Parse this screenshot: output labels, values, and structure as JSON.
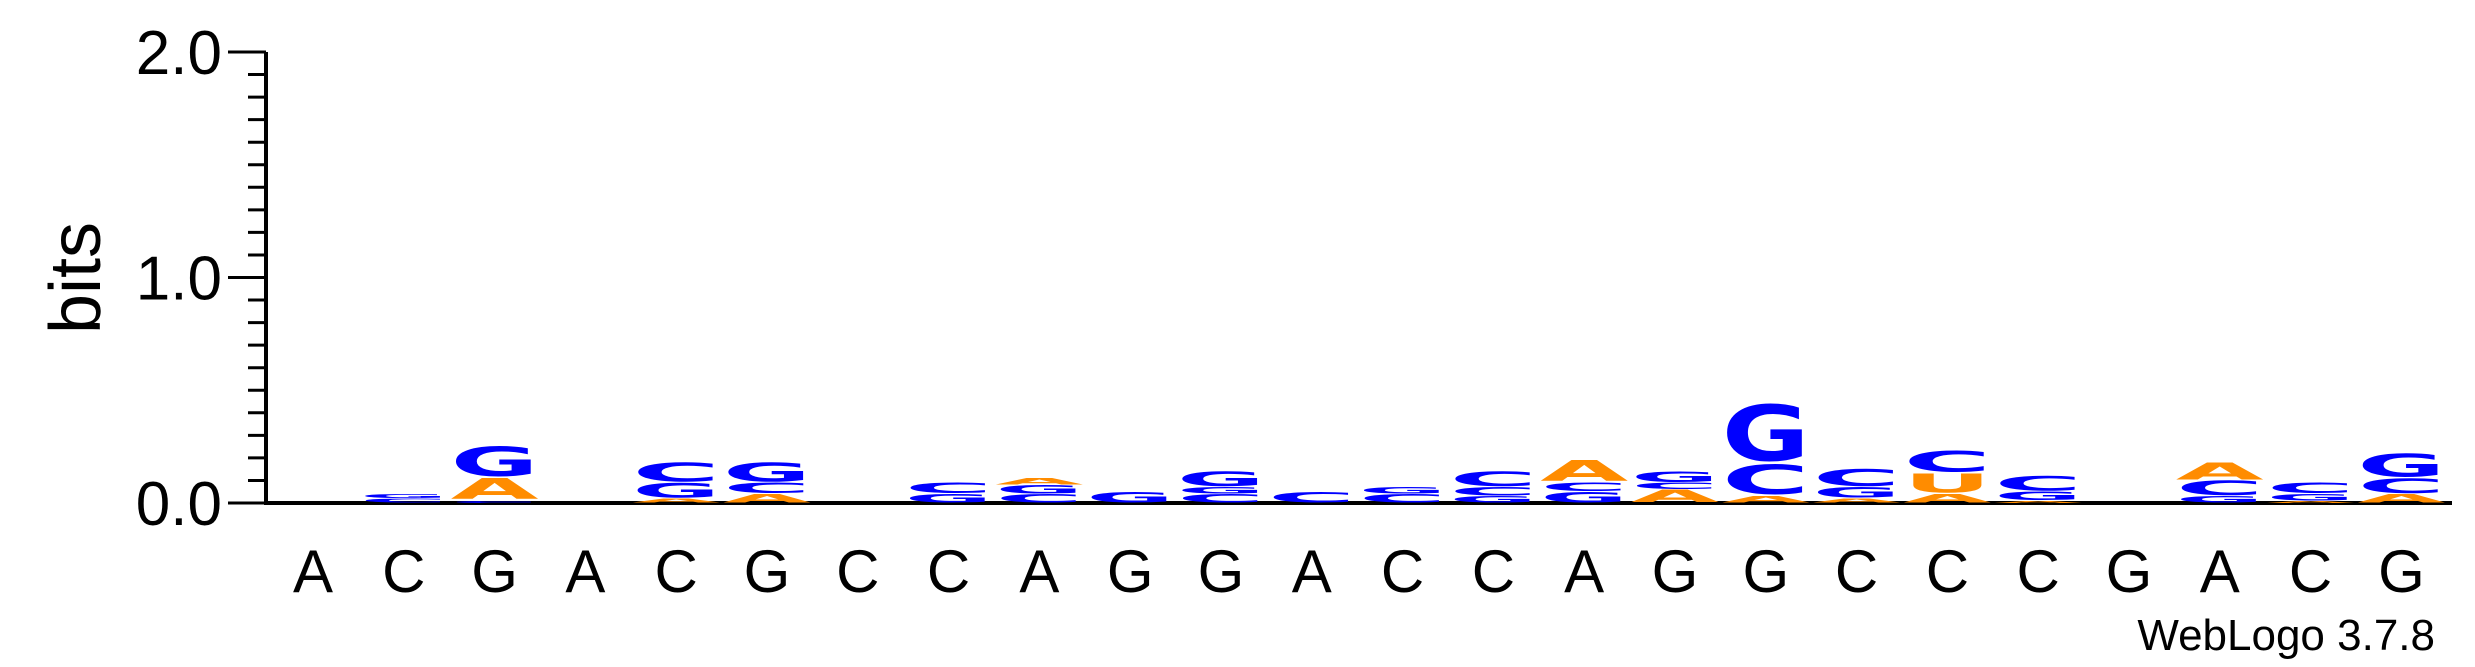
{
  "chart_data": {
    "type": "sequence-logo",
    "ylabel": "bits",
    "ylim": [
      0,
      2
    ],
    "yticks": [
      "0.0",
      "1.0",
      "2.0"
    ],
    "positions": [
      "A",
      "C",
      "G",
      "A",
      "C",
      "G",
      "C",
      "C",
      "A",
      "G",
      "G",
      "A",
      "C",
      "C",
      "A",
      "G",
      "G",
      "C",
      "C",
      "C",
      "G",
      "A",
      "C",
      "G"
    ],
    "colors": {
      "A": "#ff8c00",
      "U": "#ff8c00",
      "C": "#0000ff",
      "G": "#0000ff"
    },
    "stacks": [
      [],
      [
        {
          "letter": "C",
          "bits": 0.02
        },
        {
          "letter": "G",
          "bits": 0.02
        }
      ],
      [
        {
          "letter": "C",
          "bits": 0.01
        },
        {
          "letter": "A",
          "bits": 0.1
        },
        {
          "letter": "G",
          "bits": 0.14
        }
      ],
      [],
      [
        {
          "letter": "A",
          "bits": 0.02
        },
        {
          "letter": "G",
          "bits": 0.07
        },
        {
          "letter": "C",
          "bits": 0.09
        }
      ],
      [
        {
          "letter": "A",
          "bits": 0.04
        },
        {
          "letter": "C",
          "bits": 0.05
        },
        {
          "letter": "G",
          "bits": 0.09
        }
      ],
      [],
      [
        {
          "letter": "G",
          "bits": 0.04
        },
        {
          "letter": "C",
          "bits": 0.05
        }
      ],
      [
        {
          "letter": "C",
          "bits": 0.04
        },
        {
          "letter": "G",
          "bits": 0.04
        },
        {
          "letter": "A",
          "bits": 0.03
        }
      ],
      [
        {
          "letter": "G",
          "bits": 0.05
        }
      ],
      [
        {
          "letter": "C",
          "bits": 0.04
        },
        {
          "letter": "G",
          "bits": 0.03
        },
        {
          "letter": "G",
          "bits": 0.07
        }
      ],
      [
        {
          "letter": "C",
          "bits": 0.05
        }
      ],
      [
        {
          "letter": "C",
          "bits": 0.04
        },
        {
          "letter": "G",
          "bits": 0.03
        }
      ],
      [
        {
          "letter": "G",
          "bits": 0.03
        },
        {
          "letter": "C",
          "bits": 0.04
        },
        {
          "letter": "C",
          "bits": 0.07
        }
      ],
      [
        {
          "letter": "G",
          "bits": 0.05
        },
        {
          "letter": "C",
          "bits": 0.04
        },
        {
          "letter": "A",
          "bits": 0.1
        }
      ],
      [
        {
          "letter": "A",
          "bits": 0.06
        },
        {
          "letter": "C",
          "bits": 0.03
        },
        {
          "letter": "G",
          "bits": 0.05
        }
      ],
      [
        {
          "letter": "A",
          "bits": 0.03
        },
        {
          "letter": "C",
          "bits": 0.14
        },
        {
          "letter": "G",
          "bits": 0.27
        }
      ],
      [
        {
          "letter": "A",
          "bits": 0.02
        },
        {
          "letter": "G",
          "bits": 0.05
        },
        {
          "letter": "C",
          "bits": 0.08
        }
      ],
      [
        {
          "letter": "A",
          "bits": 0.04
        },
        {
          "letter": "U",
          "bits": 0.09
        },
        {
          "letter": "C",
          "bits": 0.1
        }
      ],
      [
        {
          "letter": "A",
          "bits": 0.01
        },
        {
          "letter": "G",
          "bits": 0.04
        },
        {
          "letter": "C",
          "bits": 0.07
        }
      ],
      [],
      [
        {
          "letter": "G",
          "bits": 0.03
        },
        {
          "letter": "C",
          "bits": 0.07
        },
        {
          "letter": "A",
          "bits": 0.08
        }
      ],
      [
        {
          "letter": "A",
          "bits": 0.01
        },
        {
          "letter": "G",
          "bits": 0.03
        },
        {
          "letter": "C",
          "bits": 0.05
        }
      ],
      [
        {
          "letter": "A",
          "bits": 0.04
        },
        {
          "letter": "C",
          "bits": 0.07
        },
        {
          "letter": "G",
          "bits": 0.11
        }
      ]
    ]
  },
  "credit": "WebLogo 3.7.8"
}
